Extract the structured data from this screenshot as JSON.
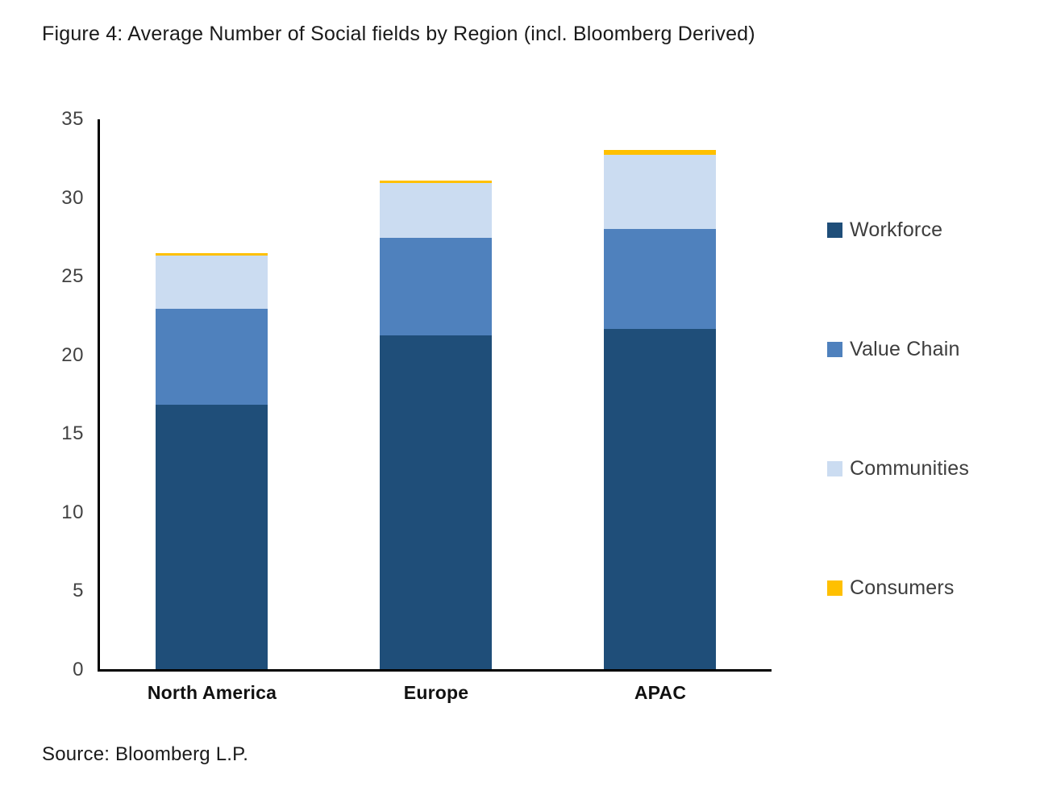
{
  "title": "Figure 4: Average Number of Social fields by Region (incl. Bloomberg Derived)",
  "source": "Source: Bloomberg L.P.",
  "colors": {
    "workforce": "#1F4E79",
    "value_chain": "#4F81BD",
    "communities": "#CBDCF1",
    "consumers": "#FFC000",
    "axis": "#000000",
    "title_text": "#1A1A1A",
    "tick_text": "#424242",
    "legend_text": "#3D3D3D"
  },
  "chart_data": {
    "type": "bar",
    "stacked": true,
    "categories": [
      "North America",
      "Europe",
      "APAC"
    ],
    "series": [
      {
        "name": "Workforce",
        "color": "#1F4E79",
        "values": [
          16.8,
          21.2,
          21.6
        ]
      },
      {
        "name": "Value Chain",
        "color": "#4F81BD",
        "values": [
          6.1,
          6.2,
          6.4
        ]
      },
      {
        "name": "Communities",
        "color": "#CBDCF1",
        "values": [
          3.4,
          3.5,
          4.7
        ]
      },
      {
        "name": "Consumers",
        "color": "#FFC000",
        "values": [
          0.15,
          0.15,
          0.3
        ]
      }
    ],
    "stack_totals": [
      26.45,
      31.05,
      33.0
    ],
    "title": "Figure 4: Average Number of Social fields by Region (incl. Bloomberg Derived)",
    "xlabel": "",
    "ylabel": "",
    "ylim": [
      0,
      35
    ],
    "yticks": [
      0,
      5,
      10,
      15,
      20,
      25,
      30,
      35
    ],
    "grid": false,
    "legend_position": "right"
  },
  "legend": {
    "items": [
      {
        "label": "Workforce",
        "color": "#1F4E79"
      },
      {
        "label": "Value Chain",
        "color": "#4F81BD"
      },
      {
        "label": "Communities",
        "color": "#CBDCF1"
      },
      {
        "label": "Consumers",
        "color": "#FFC000"
      }
    ]
  }
}
